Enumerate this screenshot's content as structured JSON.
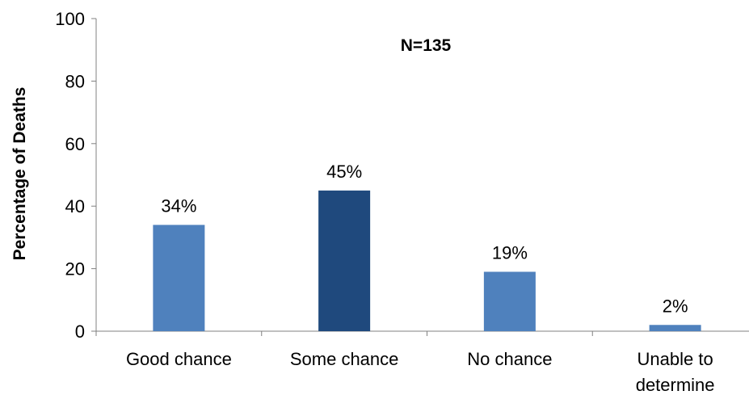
{
  "chart_data": {
    "type": "bar",
    "categories": [
      "Good chance",
      "Some chance",
      "No chance",
      "Unable to determine"
    ],
    "category_lines": [
      [
        "Good chance"
      ],
      [
        "Some chance"
      ],
      [
        "No chance"
      ],
      [
        "Unable to",
        "determine"
      ]
    ],
    "values": [
      34,
      45,
      19,
      2
    ],
    "data_labels": [
      "34%",
      "45%",
      "19%",
      "2%"
    ],
    "bar_colors": [
      "#4f81bd",
      "#1f497d",
      "#4f81bd",
      "#4f81bd"
    ],
    "ylabel": "Percentage of Deaths",
    "xlabel": "",
    "ylim": [
      0,
      100
    ],
    "yticks": [
      0,
      20,
      40,
      60,
      80,
      100
    ],
    "annotation": "N=135",
    "grid": false,
    "legend": "none"
  }
}
